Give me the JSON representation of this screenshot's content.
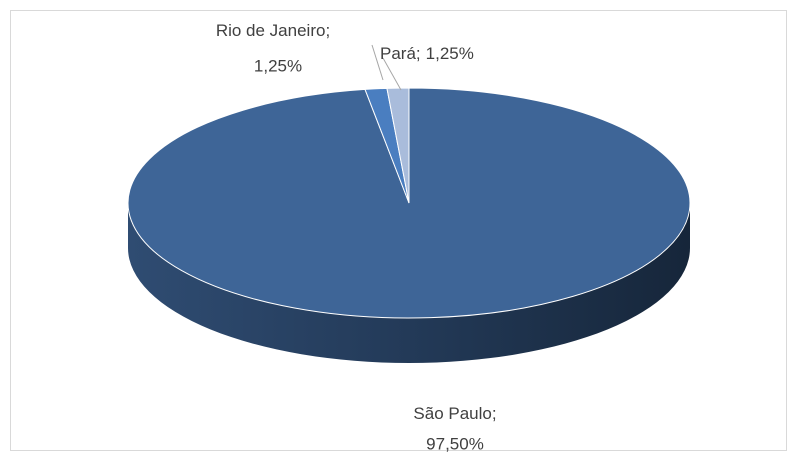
{
  "chart_data": {
    "type": "pie",
    "label_separator": ";",
    "categories": [
      "São Paulo",
      "Rio de Janeiro",
      "Pará"
    ],
    "values": [
      97.5,
      1.25,
      1.25
    ],
    "value_labels": [
      "97,50%",
      "1,25%",
      "1,25%"
    ],
    "colors": [
      "#3e6597",
      "#4a7ec0",
      "#a9bcdb"
    ]
  }
}
